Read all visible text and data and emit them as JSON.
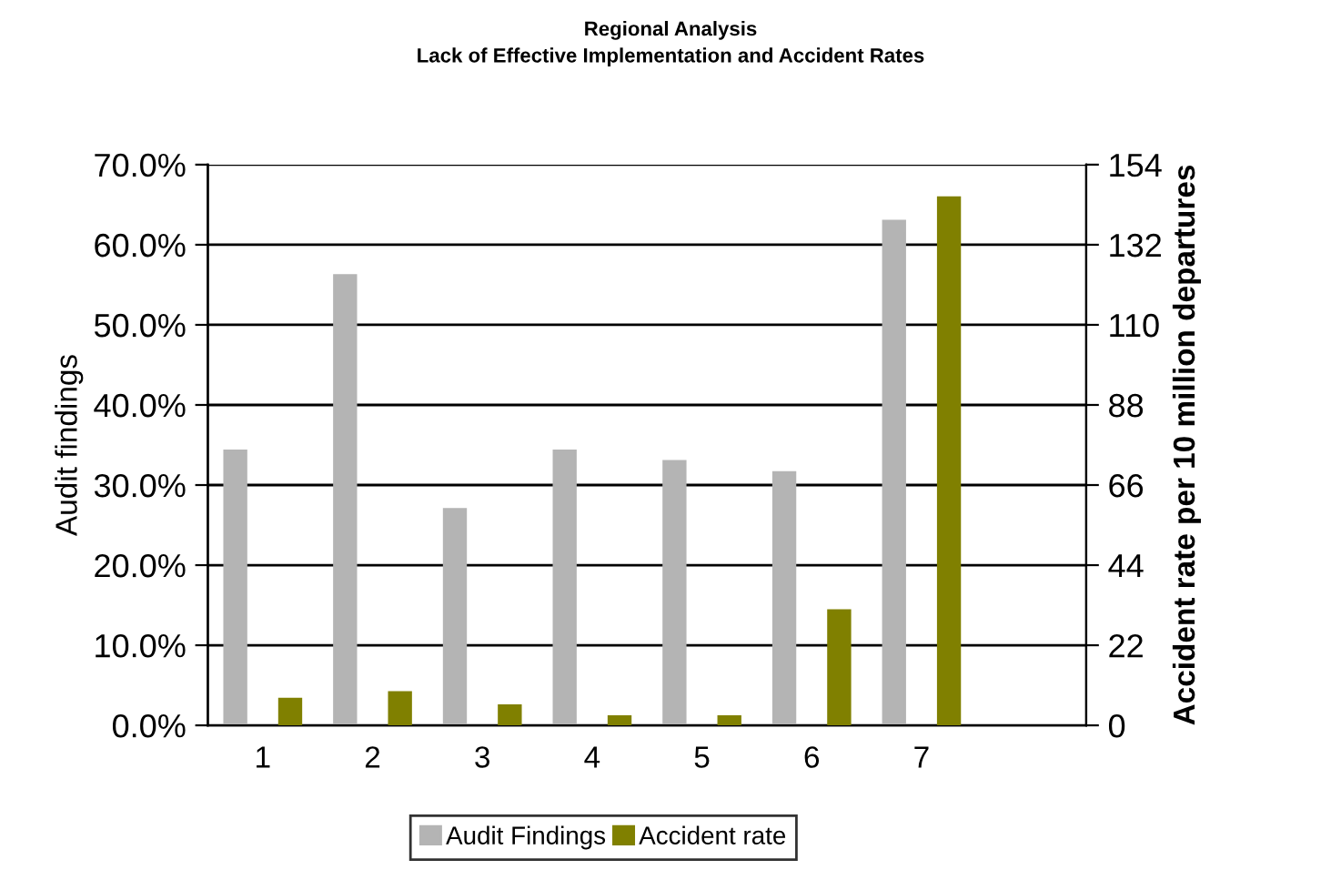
{
  "chart_data": {
    "type": "bar",
    "title": "Regional Analysis",
    "subtitle": "Lack of Effective Implementation and Accident Rates",
    "ylabel": "Audit findings",
    "y2label": "Accident rate per 10 million departures",
    "categories": [
      "1",
      "2",
      "3",
      "4",
      "5",
      "6",
      "7",
      null
    ],
    "series": [
      {
        "name": "Audit Findings",
        "color": "#b4b4b4",
        "values": [
          34.3,
          56.2,
          27.0,
          34.3,
          33.0,
          31.6,
          63.0,
          null
        ]
      },
      {
        "name": "Accident rate",
        "color": "#808000",
        "axis": "y2",
        "values": [
          7.3,
          9.1,
          5.5,
          2.5,
          2.5,
          31.6,
          145,
          null
        ]
      }
    ],
    "ylim": [
      0,
      70
    ],
    "yticks": [
      {
        "value": 0,
        "label": "0.0%"
      },
      {
        "value": 10,
        "label": "10.0%"
      },
      {
        "value": 20,
        "label": "20.0%"
      },
      {
        "value": 30,
        "label": "30.0%"
      },
      {
        "value": 40,
        "label": "40.0%"
      },
      {
        "value": 50,
        "label": "50.0%"
      },
      {
        "value": 60,
        "label": "60.0%"
      },
      {
        "value": 70,
        "label": "70.0%"
      }
    ],
    "y2lim": [
      0,
      154
    ],
    "y2ticks": [
      0,
      22,
      44,
      66,
      88,
      110,
      132,
      154
    ],
    "grid": "y",
    "legend": "bottom"
  }
}
